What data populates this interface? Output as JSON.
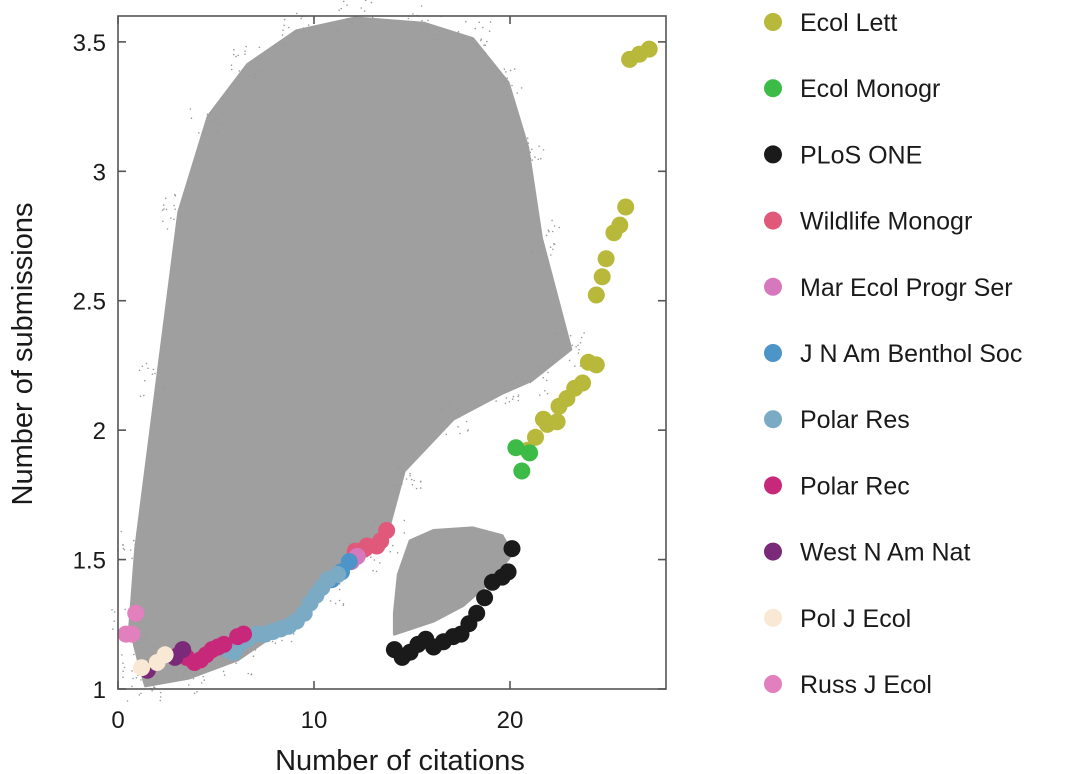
{
  "chart_data": {
    "type": "scatter",
    "xlabel": "Number of citations",
    "ylabel": "Number of submissions",
    "xlim": [
      0,
      28
    ],
    "ylim": [
      1.0,
      3.6
    ],
    "x_ticks": [
      0,
      10,
      20
    ],
    "y_ticks": [
      1.0,
      1.5,
      2.0,
      2.5,
      3.0,
      3.5
    ],
    "y_tick_labels": [
      "1",
      "1.5",
      "2",
      "2.5",
      "3",
      "3.5"
    ],
    "grid": false,
    "legend_position": "right",
    "background_cloud": {
      "description_color": "#9a9a9a",
      "main_region": [
        [
          1.3,
          1.02
        ],
        [
          3.5,
          1.05
        ],
        [
          6,
          1.12
        ],
        [
          8.5,
          1.25
        ],
        [
          10.5,
          1.4
        ],
        [
          12.5,
          1.52
        ],
        [
          13.6,
          1.6
        ],
        [
          14.5,
          1.85
        ],
        [
          17,
          2.05
        ],
        [
          19.5,
          2.15
        ],
        [
          21,
          2.2
        ],
        [
          23,
          2.32
        ],
        [
          21.5,
          2.75
        ],
        [
          20.8,
          3.1
        ],
        [
          19.8,
          3.35
        ],
        [
          18,
          3.52
        ],
        [
          15.5,
          3.58
        ],
        [
          12,
          3.6
        ],
        [
          9,
          3.55
        ],
        [
          6.5,
          3.42
        ],
        [
          4.5,
          3.22
        ],
        [
          3,
          2.85
        ],
        [
          1.9,
          2.2
        ],
        [
          0.8,
          1.55
        ],
        [
          0.5,
          1.25
        ],
        [
          1,
          1.1
        ]
      ],
      "secondary_region": [
        [
          14,
          1.22
        ],
        [
          16,
          1.27
        ],
        [
          17.5,
          1.33
        ],
        [
          19,
          1.43
        ],
        [
          20,
          1.53
        ],
        [
          19.5,
          1.6
        ],
        [
          18,
          1.63
        ],
        [
          16,
          1.62
        ],
        [
          14.8,
          1.58
        ],
        [
          14.2,
          1.45
        ],
        [
          14,
          1.3
        ]
      ]
    },
    "series": [
      {
        "name": "Ecol Lett",
        "color": "#b8b83a",
        "points": [
          [
            26,
            3.44
          ],
          [
            26.5,
            3.46
          ],
          [
            27,
            3.48
          ],
          [
            25.8,
            2.87
          ],
          [
            25.5,
            2.8
          ],
          [
            25.2,
            2.77
          ],
          [
            24.8,
            2.67
          ],
          [
            24.6,
            2.6
          ],
          [
            24.3,
            2.53
          ],
          [
            23.9,
            2.27
          ],
          [
            24.3,
            2.26
          ],
          [
            23.6,
            2.19
          ],
          [
            23.2,
            2.17
          ],
          [
            22.8,
            2.13
          ],
          [
            22.4,
            2.1
          ],
          [
            22.3,
            2.04
          ],
          [
            21.6,
            2.05
          ],
          [
            21.8,
            2.03
          ],
          [
            21.2,
            1.98
          ],
          [
            20.8,
            1.93
          ]
        ]
      },
      {
        "name": "Ecol Monogr",
        "color": "#3dbb47",
        "points": [
          [
            20.2,
            1.94
          ],
          [
            20.9,
            1.92
          ],
          [
            20.5,
            1.85
          ]
        ]
      },
      {
        "name": "PLoS ONE",
        "color": "#1a1a1a",
        "points": [
          [
            14,
            1.16
          ],
          [
            14.4,
            1.13
          ],
          [
            14.8,
            1.15
          ],
          [
            15.2,
            1.18
          ],
          [
            15.6,
            1.2
          ],
          [
            16,
            1.17
          ],
          [
            16.5,
            1.19
          ],
          [
            17,
            1.21
          ],
          [
            17.4,
            1.22
          ],
          [
            17.8,
            1.26
          ],
          [
            18.2,
            1.3
          ],
          [
            18.6,
            1.36
          ],
          [
            19,
            1.42
          ],
          [
            19.5,
            1.44
          ],
          [
            19.8,
            1.46
          ],
          [
            20,
            1.55
          ]
        ]
      },
      {
        "name": "Wildlife Monogr",
        "color": "#e0587a",
        "points": [
          [
            12,
            1.54
          ],
          [
            12.6,
            1.56
          ],
          [
            13.1,
            1.56
          ],
          [
            13.3,
            1.58
          ],
          [
            13.6,
            1.62
          ],
          [
            12.5,
            1.55
          ]
        ]
      },
      {
        "name": "Mar Ecol Progr Ser",
        "color": "#d778bf",
        "points": [
          [
            11.8,
            1.5
          ],
          [
            12.1,
            1.52
          ]
        ]
      },
      {
        "name": "J N Am Benthol Soc",
        "color": "#4d95c8",
        "points": [
          [
            11.3,
            1.46
          ],
          [
            11.7,
            1.5
          ],
          [
            10.8,
            1.43
          ]
        ]
      },
      {
        "name": "Polar Res",
        "color": "#7aaac4",
        "points": [
          [
            5.5,
            1.16
          ],
          [
            5.8,
            1.15
          ],
          [
            6.1,
            1.18
          ],
          [
            6.5,
            1.2
          ],
          [
            7,
            1.22
          ],
          [
            7.4,
            1.22
          ],
          [
            7.8,
            1.23
          ],
          [
            8.2,
            1.24
          ],
          [
            8.6,
            1.25
          ],
          [
            9,
            1.27
          ],
          [
            9.4,
            1.3
          ],
          [
            9.7,
            1.34
          ],
          [
            10,
            1.37
          ],
          [
            10.3,
            1.4
          ],
          [
            10.6,
            1.43
          ],
          [
            11.1,
            1.45
          ]
        ]
      },
      {
        "name": "Polar Rec",
        "color": "#c8287a",
        "points": [
          [
            3,
            1.14
          ],
          [
            3.4,
            1.13
          ],
          [
            3.8,
            1.11
          ],
          [
            4.1,
            1.12
          ],
          [
            4.4,
            1.14
          ],
          [
            4.7,
            1.16
          ],
          [
            5,
            1.17
          ],
          [
            5.3,
            1.18
          ],
          [
            6,
            1.21
          ],
          [
            6.3,
            1.22
          ]
        ]
      },
      {
        "name": "West N Am Nat",
        "color": "#7a2a78",
        "points": [
          [
            1.4,
            1.08
          ],
          [
            2.8,
            1.13
          ],
          [
            3.2,
            1.16
          ]
        ]
      },
      {
        "name": "Pol J Ecol",
        "color": "#f8e8d4",
        "points": [
          [
            1.1,
            1.09
          ],
          [
            1.9,
            1.11
          ],
          [
            2.3,
            1.14
          ]
        ]
      },
      {
        "name": "Russ J Ecol",
        "color": "#e27fbd",
        "points": [
          [
            0.3,
            1.22
          ],
          [
            0.6,
            1.22
          ],
          [
            0.8,
            1.3
          ]
        ]
      }
    ]
  }
}
